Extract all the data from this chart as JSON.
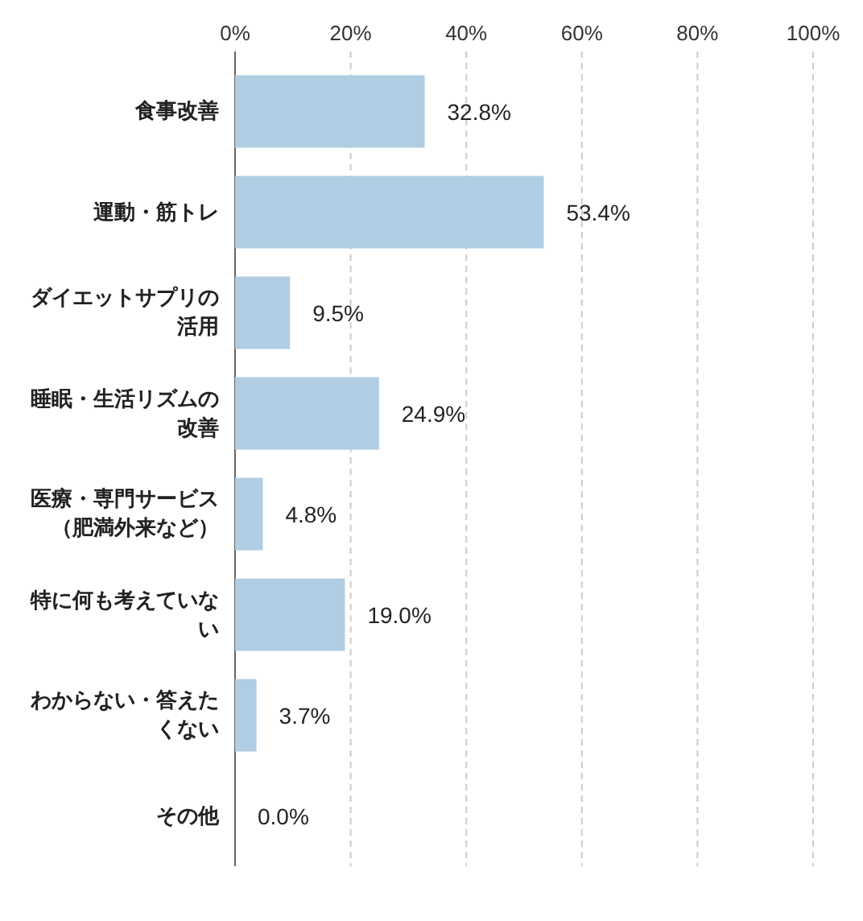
{
  "chart_data": {
    "type": "bar",
    "orientation": "horizontal",
    "categories": [
      "食事改善",
      "運動・筋トレ",
      "ダイエットサプリの活用",
      "睡眠・生活リズムの改善",
      "医療・専門サービス（肥満外来など）",
      "特に何も考えていない",
      "わからない・答えたくない",
      "その他"
    ],
    "values": [
      32.8,
      53.4,
      9.5,
      24.9,
      4.8,
      19.0,
      3.7,
      0.0
    ],
    "value_labels": [
      "32.8%",
      "53.4%",
      "9.5%",
      "24.9%",
      "4.8%",
      "19.0%",
      "3.7%",
      "0.0%"
    ],
    "color": "#b0cde3",
    "xlim": [
      0,
      100
    ],
    "xticks": [
      {
        "value": 0,
        "label": "0%"
      },
      {
        "value": 20,
        "label": "20%"
      },
      {
        "value": 40,
        "label": "40%"
      },
      {
        "value": 60,
        "label": "60%"
      },
      {
        "value": 80,
        "label": "80%"
      },
      {
        "value": 100,
        "label": "100%"
      }
    ],
    "grid": "x"
  }
}
